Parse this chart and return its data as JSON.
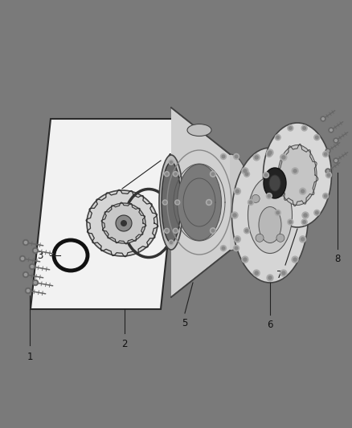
{
  "bg_color": "#7a7a7a",
  "line_color": "#2a2a2a",
  "part_fill": "#d8d8d8",
  "part_edge": "#3a3a3a",
  "dark_fill": "#5a5a5a",
  "white_fill": "#f0f0f0",
  "label_color": "#111111",
  "figsize": [
    4.38,
    5.33
  ],
  "dpi": 100,
  "label_fontsize": 8.5
}
